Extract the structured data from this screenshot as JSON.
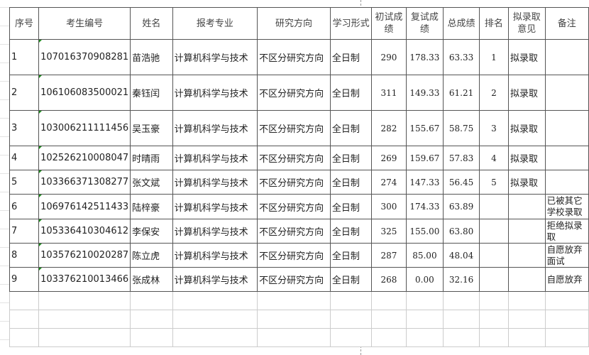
{
  "headers": [
    "序号",
    "考生编号",
    "姓名",
    "报考专业",
    "研究方向",
    "学习形式",
    "初试成绩",
    "复试成绩",
    "总成绩",
    "排名",
    "拟录取意见",
    "备注"
  ],
  "rows": [
    [
      "1",
      "107016370908281",
      "苗浩驰",
      "计算机科学与技术",
      "不区分研究方向",
      "全日制",
      "290",
      "178.33",
      "63.33",
      "1",
      "拟录取",
      ""
    ],
    [
      "2",
      "106106083500021",
      "秦钰闰",
      "计算机科学与技术",
      "不区分研究方向",
      "全日制",
      "311",
      "149.33",
      "61.21",
      "2",
      "拟录取",
      ""
    ],
    [
      "3",
      "103006211111456",
      "吴玉豪",
      "计算机科学与技术",
      "不区分研究方向",
      "全日制",
      "282",
      "155.67",
      "58.75",
      "3",
      "拟录取",
      ""
    ],
    [
      "4",
      "102526210008047",
      "时晴雨",
      "计算机科学与技术",
      "不区分研究方向",
      "全日制",
      "269",
      "159.67",
      "57.83",
      "4",
      "拟录取",
      ""
    ],
    [
      "5",
      "103366371308277",
      "张文斌",
      "计算机科学与技术",
      "不区分研究方向",
      "全日制",
      "274",
      "147.33",
      "56.45",
      "5",
      "拟录取",
      ""
    ],
    [
      "6",
      "106976142511433",
      "陆梓豪",
      "计算机科学与技术",
      "不区分研究方向",
      "全日制",
      "300",
      "174.33",
      "63.89",
      "",
      "",
      "已被其它学校录取"
    ],
    [
      "7",
      "105336410304612",
      "李保安",
      "计算机科学与技术",
      "不区分研究方向",
      "全日制",
      "325",
      "155.00",
      "63.80",
      "",
      "",
      "拒绝拟录取"
    ],
    [
      "8",
      "103576210020287",
      "陈立虎",
      "计算机科学与技术",
      "不区分研究方向",
      "全日制",
      "287",
      "85.00",
      "48.04",
      "",
      "",
      "自愿放弃面试"
    ],
    [
      "9",
      "103376210013466",
      "张成林",
      "计算机科学与技术",
      "不区分研究方向",
      "全日制",
      "268",
      "0.00",
      "32.16",
      "",
      "",
      "自愿放弃"
    ]
  ]
}
